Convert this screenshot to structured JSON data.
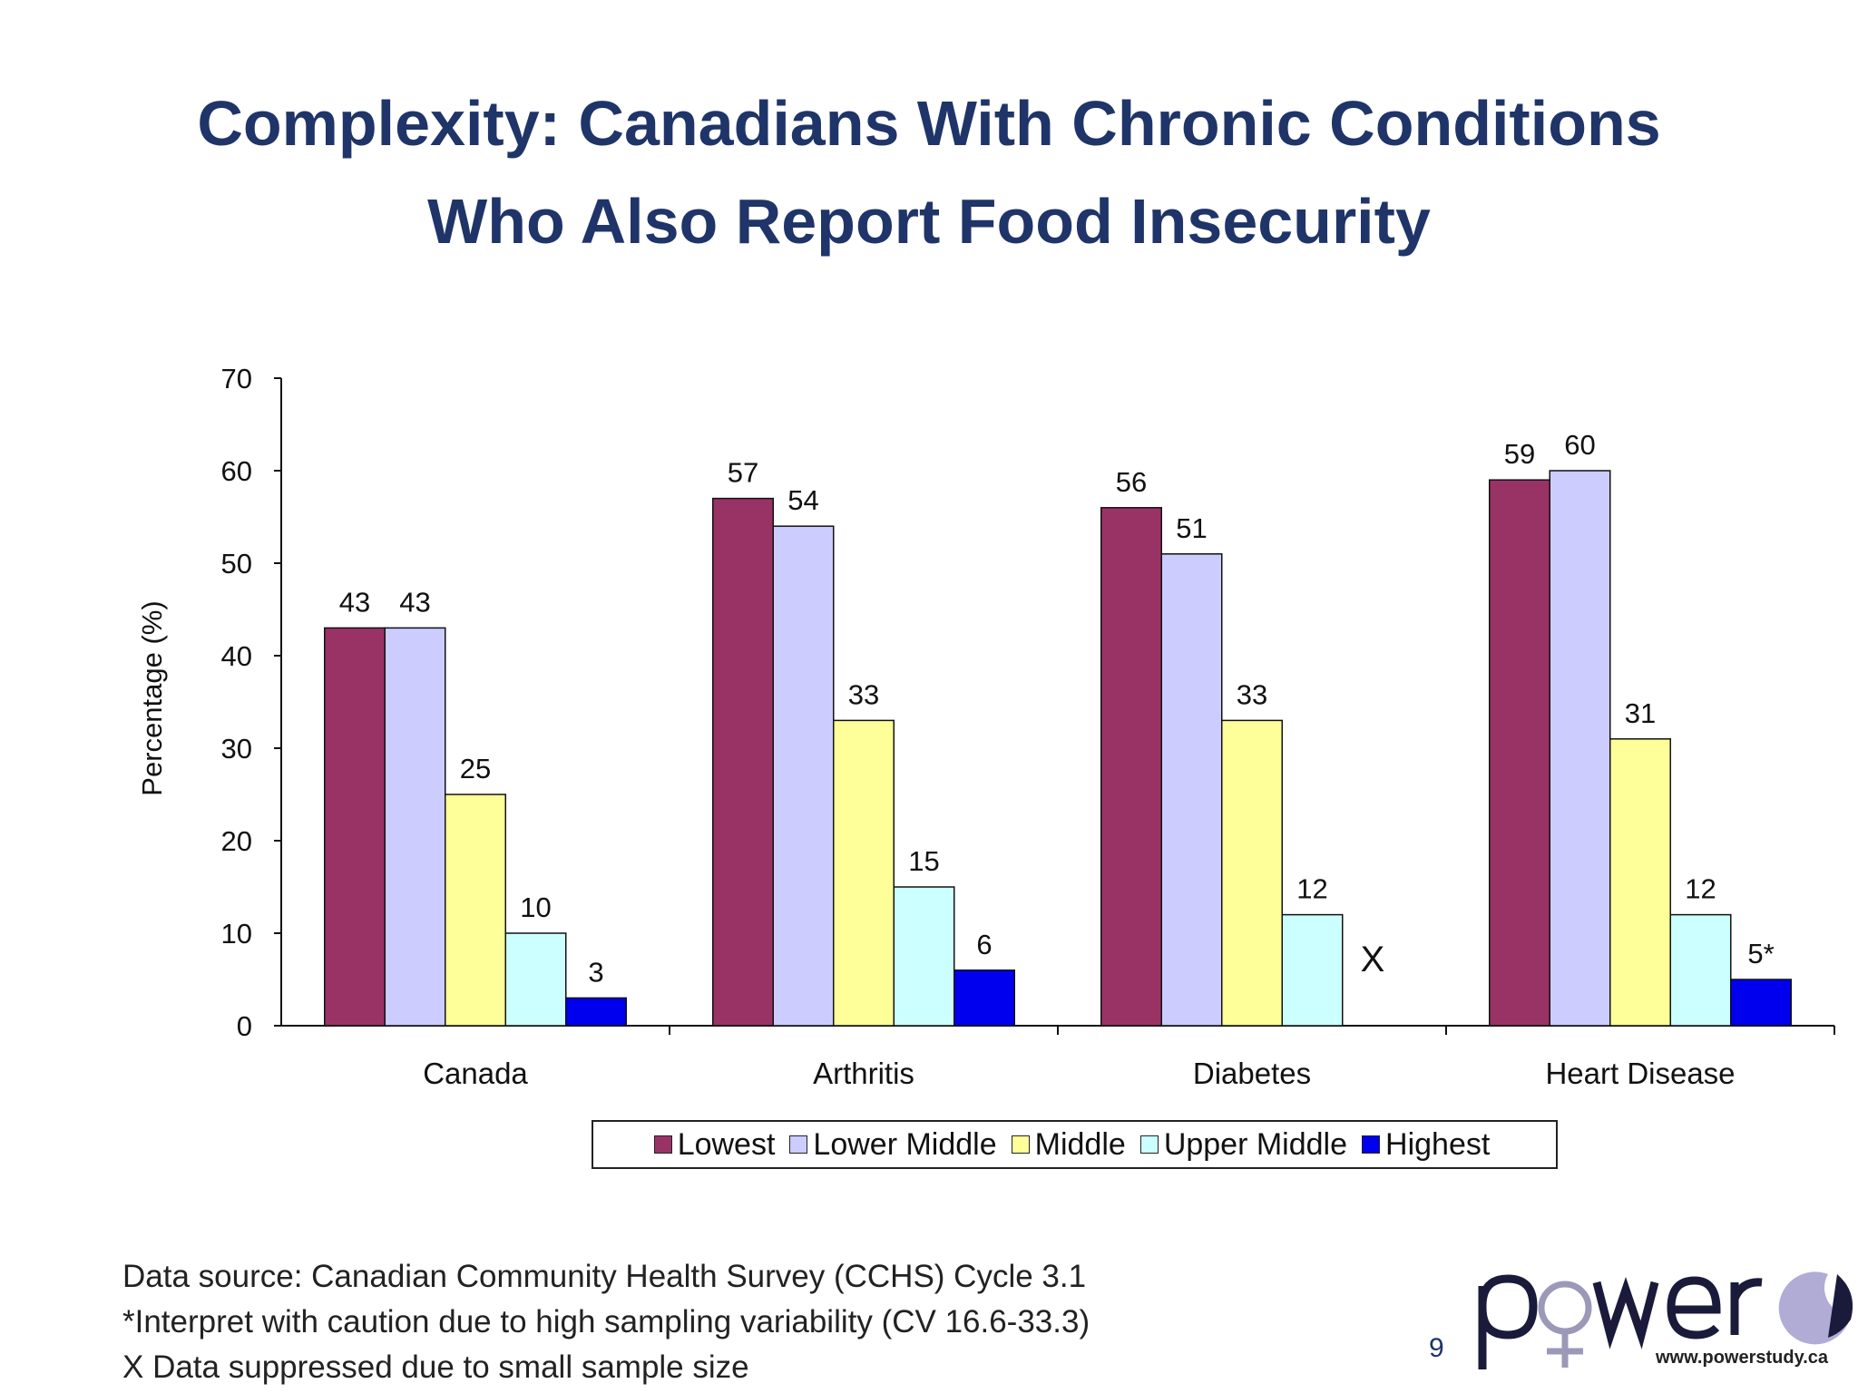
{
  "title": {
    "line1": "Complexity: Canadians With Chronic Conditions",
    "line2": "Who Also Report Food Insecurity"
  },
  "chart_data": {
    "type": "bar",
    "title": "",
    "xlabel": "",
    "ylabel": "Percentage (%)",
    "ylim": [
      0,
      70
    ],
    "yticks": [
      0,
      10,
      20,
      30,
      40,
      50,
      60,
      70
    ],
    "grid": false,
    "legend_position": "bottom",
    "categories": [
      "Canada",
      "Arthritis",
      "Diabetes",
      "Heart Disease"
    ],
    "series": [
      {
        "name": "Lowest",
        "color": "#993366",
        "values": [
          43,
          57,
          56,
          59
        ],
        "labels": [
          "43",
          "57",
          "56",
          "59"
        ]
      },
      {
        "name": "Lower Middle",
        "color": "#ccccff",
        "values": [
          43,
          54,
          51,
          60
        ],
        "labels": [
          "43",
          "54",
          "51",
          "60"
        ]
      },
      {
        "name": "Middle",
        "color": "#ffff99",
        "values": [
          25,
          33,
          33,
          31
        ],
        "labels": [
          "25",
          "33",
          "33",
          "31"
        ]
      },
      {
        "name": "Upper Middle",
        "color": "#ccffff",
        "values": [
          10,
          15,
          12,
          12
        ],
        "labels": [
          "10",
          "15",
          "12",
          "12"
        ]
      },
      {
        "name": "Highest",
        "color": "#0000ee",
        "values": [
          3,
          6,
          null,
          5
        ],
        "labels": [
          "3",
          "6",
          "X",
          "5*"
        ]
      }
    ]
  },
  "notes": {
    "source": "Data source: Canadian Community Health Survey (CCHS) Cycle 3.1",
    "caution": "*Interpret with caution due to high sampling variability (CV 16.6-33.3)",
    "suppressed": "X Data suppressed due to small sample size"
  },
  "logo": {
    "text": "power",
    "url": "www.powerstudy.ca"
  },
  "page_number": "9"
}
